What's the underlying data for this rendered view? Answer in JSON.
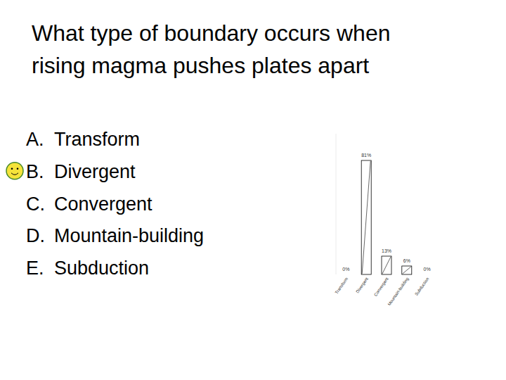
{
  "slide": {
    "question": "What type of boundary occurs when rising magma pushes plates apart",
    "options": [
      {
        "letter": "A.",
        "text": "Transform"
      },
      {
        "letter": "B.",
        "text": "Divergent"
      },
      {
        "letter": "C.",
        "text": "Convergent"
      },
      {
        "letter": "D.",
        "text": "Mountain-building"
      },
      {
        "letter": "E.",
        "text": "Subduction"
      }
    ],
    "marked": 1
  },
  "chart_data": {
    "type": "bar",
    "categories": [
      "Transform",
      "Divergent",
      "Convergent",
      "Mountain-building",
      "Subduction"
    ],
    "values": [
      0,
      81,
      13,
      6,
      0
    ],
    "value_labels": [
      "0%",
      "81%",
      "13%",
      "6%",
      "0%"
    ],
    "data_labels": true,
    "tick_labels": "x",
    "color": "#ffffff",
    "ylim": [
      0,
      100
    ],
    "yticks": []
  }
}
